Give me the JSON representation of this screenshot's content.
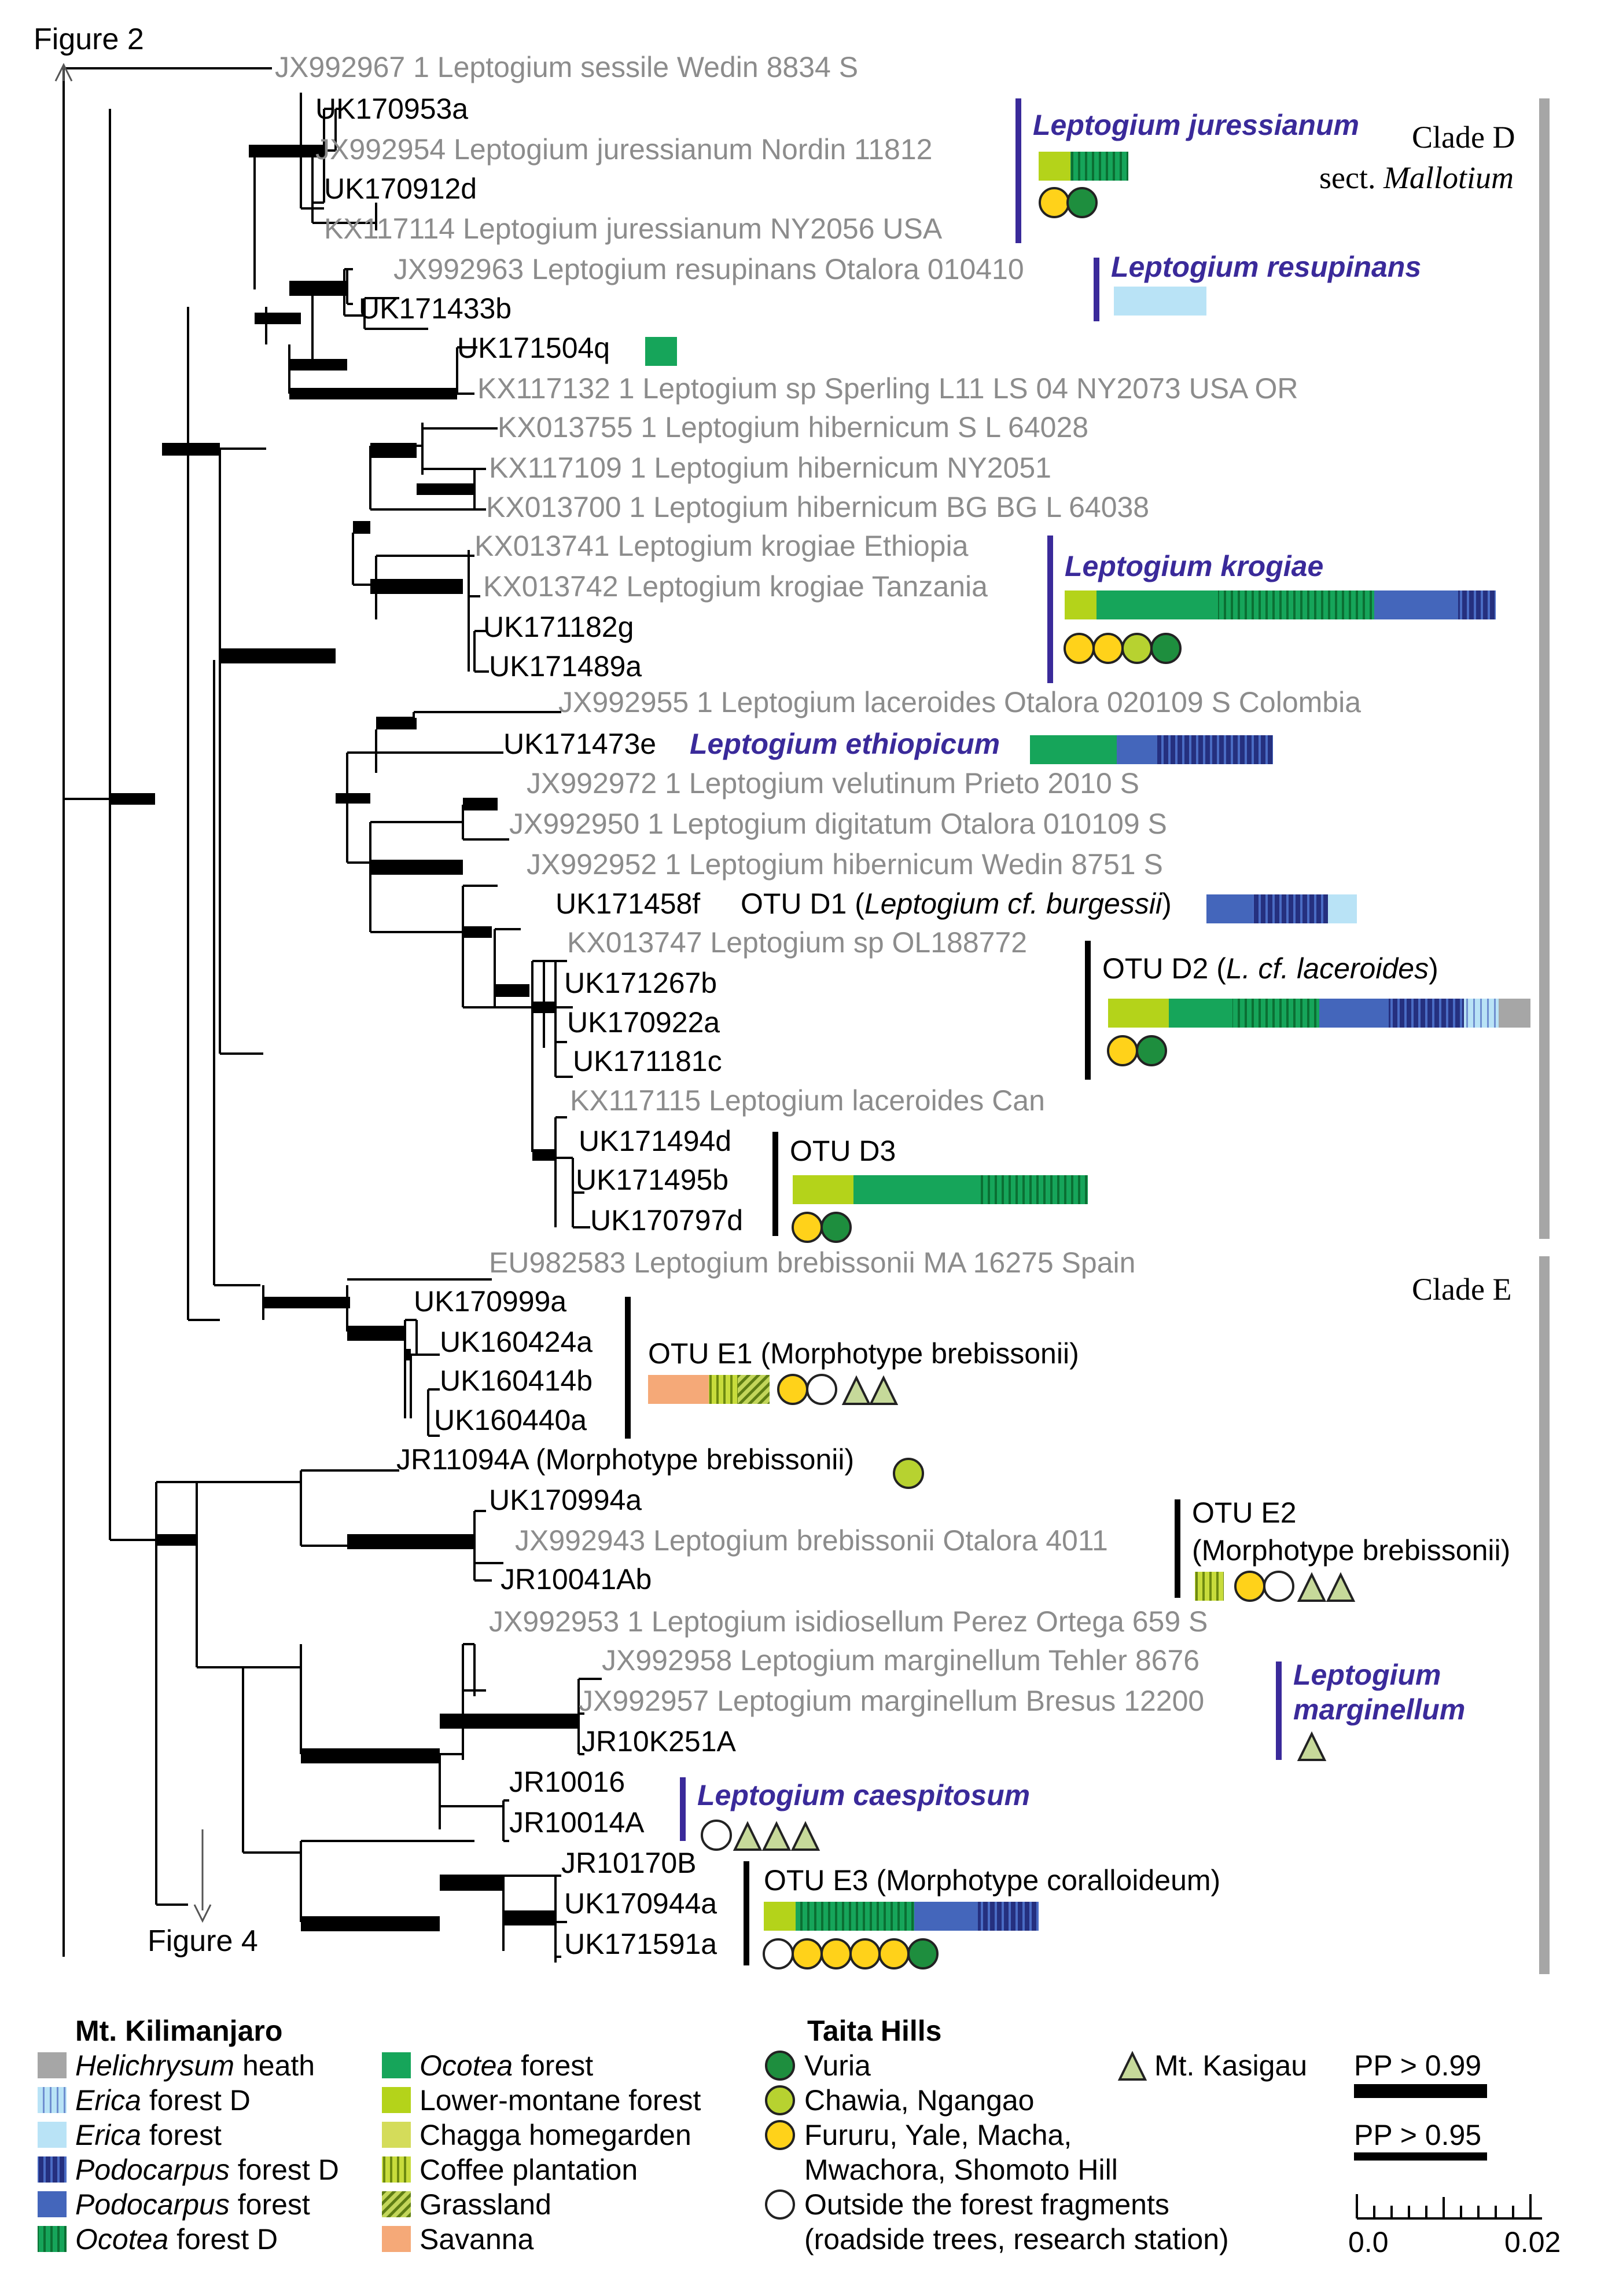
{
  "figure": {
    "title": "Figure 2",
    "arrow_bottom_label": "Figure 4",
    "clade_d_label": "Clade D",
    "clade_d_sect_prefix": "sect. ",
    "clade_d_sect_name": "Mallotium",
    "clade_e_label": "Clade E"
  },
  "colors": {
    "grey_leaf": "#8c8c8c",
    "black_leaf": "#000000",
    "species_purple": "#3a2a9a",
    "helichrysum": "#a6a6a6",
    "erica_forest_d": "#9fd2ec",
    "erica_forest": "#b9e3f6",
    "podocarpus_forest_d": "#25307f",
    "podocarpus_forest": "#4466bb",
    "ocotea_forest_d": "#0f8a3e",
    "ocotea_forest": "#16a55a",
    "lower_montane": "#b4d31a",
    "chagga": "#d4dc5a",
    "coffee": "#9cb420",
    "grassland": "#8aa832",
    "savanna": "#f5a978",
    "vuria": "#1e8e3e",
    "chawia": "#b7d230",
    "fururu": "#ffd21a",
    "kasigau": "#c6d99a"
  },
  "leaves": {
    "jx992967": "JX992967 1 Leptogium sessile Wedin 8834 S",
    "uk170953a": "UK170953a",
    "jx992954": "JX992954 Leptogium juressianum Nordin 11812",
    "uk170912d": "UK170912d",
    "kx117114": "KX117114 Leptogium juressianum NY2056 USA",
    "jx992963": "JX992963 Leptogium resupinans Otalora 010410",
    "uk171433b": "UK171433b",
    "uk171504q": "UK171504q",
    "kx117132": "KX117132 1 Leptogium sp Sperling L11 LS 04 NY2073 USA OR",
    "kx013755": "KX013755 1 Leptogium hibernicum S L 64028",
    "kx117109": "KX117109 1 Leptogium hibernicum NY2051",
    "kx013700": "KX013700 1 Leptogium hibernicum BG BG L 64038",
    "kx013741": "KX013741 Leptogium krogiae Ethiopia",
    "kx013742": "KX013742 Leptogium krogiae Tanzania",
    "uk171182g": "UK171182g",
    "uk171489a": "UK171489a",
    "jx992955": "JX992955 1 Leptogium laceroides Otalora 020109 S Colombia",
    "uk171473e": "UK171473e",
    "jx992972": "JX992972 1 Leptogium velutinum Prieto 2010 S",
    "jx992950": "JX992950 1 Leptogium digitatum Otalora 010109 S",
    "jx992952": "JX992952 1 Leptogium hibernicum Wedin 8751 S",
    "uk171458f": "UK171458f",
    "kx013747": "KX013747 Leptogium sp OL188772",
    "uk171267b": "UK171267b",
    "uk170922a": "UK170922a",
    "uk171181c": "UK171181c",
    "kx117115": "KX117115 Leptogium laceroides Can",
    "uk171494d": "UK171494d",
    "uk171495b": "UK171495b",
    "uk170797d": "UK170797d",
    "eu982583": "EU982583 Leptogium brebissonii MA 16275 Spain",
    "uk170999a": "UK170999a",
    "uk160424a": "UK160424a",
    "uk160414b": "UK160414b",
    "uk160440a": "UK160440a",
    "jr11094a": "JR11094A (Morphotype brebissonii)",
    "uk170994a": "UK170994a",
    "jx992943": "JX992943 Leptogium brebissonii Otalora 4011",
    "jr10041ab": "JR10041Ab",
    "jx992953": "JX992953 1 Leptogium isidiosellum Perez Ortega 659 S",
    "jx992958": "JX992958 Leptogium marginellum Tehler 8676",
    "jx992957": "JX992957 Leptogium marginellum Bresus 12200",
    "jr10k251a": "JR10K251A",
    "jr10016": "JR10016",
    "jr10014a": "JR10014A",
    "jr10170b": "JR10170B",
    "uk170944a": "UK170944a",
    "uk171591a": "UK171591a"
  },
  "species": {
    "juressianum": "Leptogium juressianum",
    "resupinans": "Leptogium resupinans",
    "krogiae": "Leptogium krogiae",
    "ethiopicum": "Leptogium ethiopicum",
    "marginellum_1": "Leptogium",
    "marginellum_2": "marginellum",
    "caespitosum": "Leptogium caespitosum"
  },
  "otus": {
    "d1_prefix": "OTU D1 (",
    "d1_italic": "Leptogium cf. burgessii",
    "d1_suffix": ")",
    "d2_prefix": "OTU D2 (",
    "d2_italic": "L. cf. laceroides",
    "d2_suffix": ")",
    "d3": "OTU D3",
    "e1": "OTU E1 (Morphotype brebissonii)",
    "e2_line1": "OTU E2",
    "e2_line2": "(Morphotype brebissonii)",
    "e3": "OTU E3 (Morphotype coralloideum)"
  },
  "legend": {
    "kilimanjaro_title": "Mt. Kilimanjaro",
    "helichrysum_italic": "Helichrysum",
    "helichrysum_rest": " heath",
    "erica_d_italic": "Erica",
    "erica_d_rest": " forest D",
    "erica_italic": "Erica",
    "erica_rest": " forest",
    "podocarpus_d_italic": "Podocarpus",
    "podocarpus_d_rest": " forest D",
    "podocarpus_italic": "Podocarpus",
    "podocarpus_rest": " forest",
    "ocotea_d_italic": "Ocotea",
    "ocotea_d_rest": " forest D",
    "ocotea_italic": "Ocotea",
    "ocotea_rest": " forest",
    "lower_montane": "Lower-montane forest",
    "chagga": "Chagga homegarden",
    "coffee": "Coffee plantation",
    "grassland": "Grassland",
    "savanna": "Savanna",
    "taita_title": "Taita Hills",
    "vuria": "Vuria",
    "chawia": "Chawia, Ngangao",
    "fururu_line1": "Fururu, Yale, Macha,",
    "fururu_line2": "Mwachora, Shomoto Hill",
    "outside_line1": "Outside the forest fragments",
    "outside_line2": "(roadside trees, research station)",
    "kasigau": "Mt. Kasigau",
    "pp99": "PP > 0.99",
    "pp95": "PP > 0.95",
    "scale_min": "0.0",
    "scale_max": "0.02"
  }
}
